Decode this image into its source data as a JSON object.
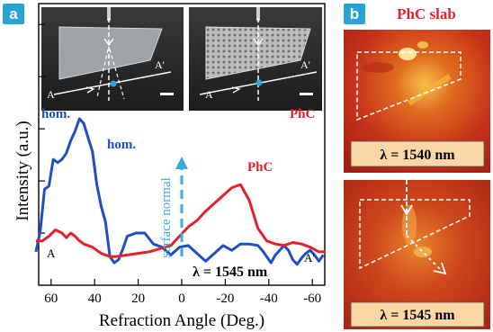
{
  "panel_a": {
    "letter": "a",
    "inset_left_labels": {
      "a": "A",
      "a_prime": "A'"
    },
    "inset_right_labels": {
      "a": "A",
      "a_prime": "A'"
    },
    "ylabel": "Intensity (a.u.)",
    "xlabel": "Refraction Angle (Deg.)",
    "series_labels": {
      "hom_upper": "hom.",
      "hom_lower": "hom.",
      "phc_right": "PhC",
      "phc_mid": "PhC"
    },
    "surface_normal_label": "surface normal",
    "lambda_label": "λ = 1545 nm",
    "end_labels": {
      "a": "A",
      "a_prime": "A'"
    }
  },
  "panel_b": {
    "letter": "b",
    "title": "PhC slab",
    "top_lambda": "λ = 1540 nm",
    "bottom_lambda": "λ = 1545 nm"
  },
  "colors": {
    "hom": "#1f4fc4",
    "phc": "#e4202e",
    "arrow": "#3aa8e6",
    "badge": "#27a3d6",
    "title_red": "#e4202e"
  },
  "chart_data": {
    "type": "line",
    "xlabel": "Refraction Angle (Deg.)",
    "ylabel": "Intensity (a.u.)",
    "x_ticks": [
      "60",
      "40",
      "20",
      "0",
      "-20",
      "-40",
      "-60"
    ],
    "xlim": [
      68,
      -68
    ],
    "ylim": [
      0,
      1
    ],
    "series": [
      {
        "name": "hom.",
        "color": "#1f4fc4",
        "x": [
          67,
          65,
          63,
          61,
          59,
          57,
          55,
          53,
          51,
          49,
          47,
          45,
          43,
          41,
          39,
          37,
          35,
          33,
          31,
          29,
          27,
          25,
          21,
          17,
          13,
          9,
          5,
          1,
          -3,
          -7,
          -11,
          -15,
          -19,
          -23,
          -27,
          -31,
          -35,
          -37,
          -39,
          -41,
          -43,
          -45,
          -47,
          -49,
          -51,
          -53,
          -55,
          -57,
          -59,
          -61,
          -63,
          -65
        ],
        "values": [
          0.15,
          0.28,
          0.55,
          0.57,
          0.74,
          0.72,
          0.74,
          0.78,
          0.86,
          0.92,
          1.0,
          0.97,
          0.88,
          0.79,
          0.58,
          0.44,
          0.34,
          0.12,
          0.08,
          0.1,
          0.17,
          0.25,
          0.27,
          0.27,
          0.2,
          0.18,
          0.13,
          0.18,
          0.19,
          0.14,
          0.09,
          0.14,
          0.19,
          0.16,
          0.2,
          0.2,
          0.19,
          0.16,
          0.12,
          0.08,
          0.13,
          0.16,
          0.19,
          0.16,
          0.1,
          0.07,
          0.11,
          0.14,
          0.16,
          0.13,
          0.09,
          0.13
        ]
      },
      {
        "name": "PhC",
        "color": "#e4202e",
        "x": [
          67,
          64,
          61,
          58,
          55,
          53,
          51,
          49,
          47,
          45,
          43,
          41,
          39,
          37,
          35,
          33,
          30,
          25,
          20,
          15,
          10,
          5,
          1,
          -3,
          -7,
          -11,
          -15,
          -19,
          -23,
          -27,
          -31,
          -35,
          -39,
          -43,
          -47,
          -51,
          -55,
          -59,
          -63,
          -66
        ],
        "values": [
          0.22,
          0.22,
          0.25,
          0.29,
          0.27,
          0.24,
          0.27,
          0.25,
          0.22,
          0.2,
          0.19,
          0.18,
          0.16,
          0.14,
          0.13,
          0.12,
          0.12,
          0.13,
          0.14,
          0.15,
          0.17,
          0.19,
          0.25,
          0.31,
          0.35,
          0.41,
          0.46,
          0.51,
          0.56,
          0.58,
          0.48,
          0.3,
          0.22,
          0.2,
          0.19,
          0.21,
          0.2,
          0.18,
          0.15,
          0.15
        ]
      }
    ]
  }
}
